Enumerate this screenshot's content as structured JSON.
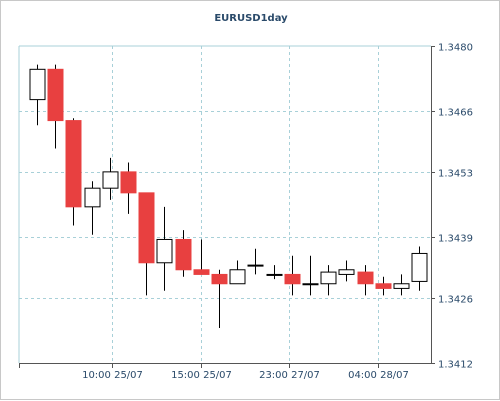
{
  "chart_data": {
    "type": "candlestick",
    "title": "EURUSD1day",
    "ylim": [
      1.3412,
      1.348
    ],
    "y_ticks": [
      "1.3480",
      "1.3466",
      "1.3453",
      "1.3439",
      "1.3426",
      "1.3412"
    ],
    "x_ticks": [
      "10:00 25/07",
      "15:00 25/07",
      "23:00 27/07",
      "04:00 28/07"
    ],
    "grid": true,
    "colors": {
      "up": "#ffffff",
      "down": "#e84040",
      "wick": "#000000",
      "grid": "#a8d0d8"
    },
    "candles": [
      {
        "open": 1.34685,
        "high": 1.3476,
        "low": 1.3463,
        "close": 1.3475
      },
      {
        "open": 1.3475,
        "high": 1.3476,
        "low": 1.3458,
        "close": 1.3464
      },
      {
        "open": 1.3464,
        "high": 1.34645,
        "low": 1.34415,
        "close": 1.34455
      },
      {
        "open": 1.34455,
        "high": 1.3451,
        "low": 1.34395,
        "close": 1.34495
      },
      {
        "open": 1.34495,
        "high": 1.3456,
        "low": 1.3447,
        "close": 1.3453
      },
      {
        "open": 1.3453,
        "high": 1.3455,
        "low": 1.3444,
        "close": 1.34485
      },
      {
        "open": 1.34485,
        "high": 1.34485,
        "low": 1.34265,
        "close": 1.34335
      },
      {
        "open": 1.34335,
        "high": 1.34455,
        "low": 1.34275,
        "close": 1.34385
      },
      {
        "open": 1.34385,
        "high": 1.34405,
        "low": 1.34305,
        "close": 1.3432
      },
      {
        "open": 1.3432,
        "high": 1.34385,
        "low": 1.3431,
        "close": 1.3431
      },
      {
        "open": 1.3431,
        "high": 1.3432,
        "low": 1.34195,
        "close": 1.3429
      },
      {
        "open": 1.3429,
        "high": 1.3434,
        "low": 1.3429,
        "close": 1.3432
      },
      {
        "open": 1.3433,
        "high": 1.34365,
        "low": 1.3431,
        "close": 1.3433
      },
      {
        "open": 1.3431,
        "high": 1.3433,
        "low": 1.343,
        "close": 1.3431
      },
      {
        "open": 1.3431,
        "high": 1.3435,
        "low": 1.34265,
        "close": 1.3429
      },
      {
        "open": 1.3429,
        "high": 1.3435,
        "low": 1.34265,
        "close": 1.3429
      },
      {
        "open": 1.3429,
        "high": 1.3433,
        "low": 1.34265,
        "close": 1.34315
      },
      {
        "open": 1.3431,
        "high": 1.3434,
        "low": 1.34295,
        "close": 1.3432
      },
      {
        "open": 1.34315,
        "high": 1.3433,
        "low": 1.34265,
        "close": 1.3429
      },
      {
        "open": 1.3429,
        "high": 1.34305,
        "low": 1.34265,
        "close": 1.3428
      },
      {
        "open": 1.3428,
        "high": 1.3431,
        "low": 1.34265,
        "close": 1.3429
      },
      {
        "open": 1.34295,
        "high": 1.3437,
        "low": 1.34275,
        "close": 1.34355
      }
    ]
  }
}
